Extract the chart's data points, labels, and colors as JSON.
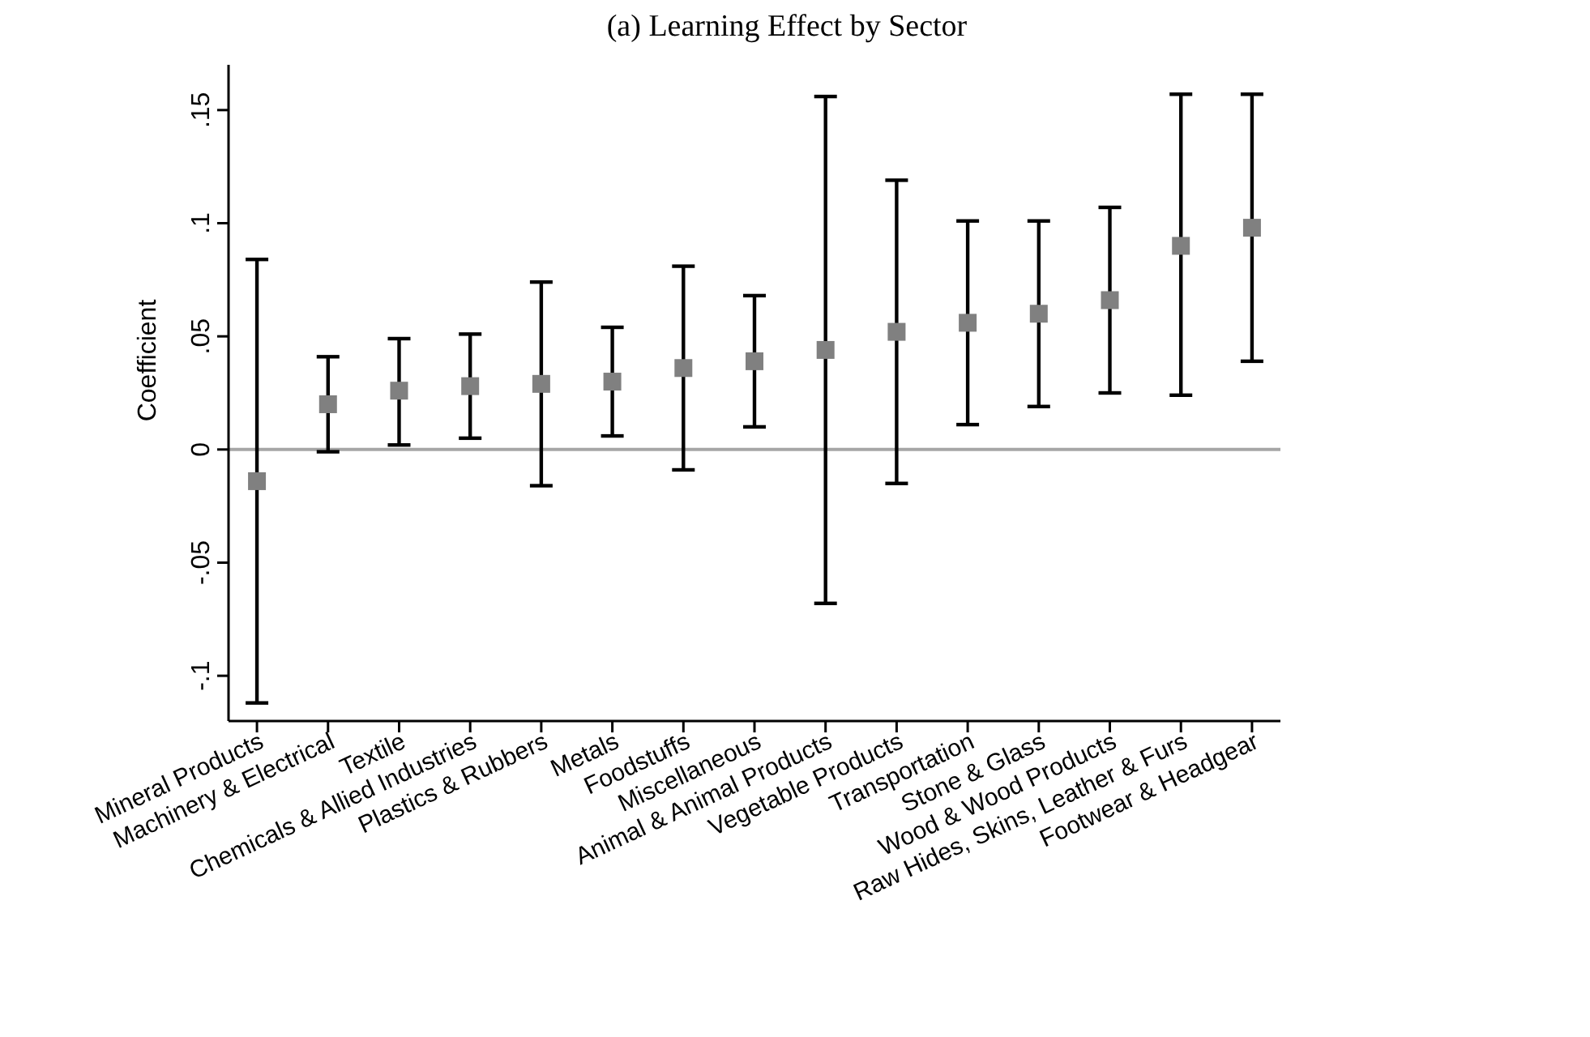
{
  "chart_data": {
    "type": "scatter",
    "title": "(a) Learning Effect by Sector",
    "ylabel": "Coefficient",
    "categories": [
      "Mineral Products",
      "Machinery & Electrical",
      "Textile",
      "Chemicals & Allied Industries",
      "Plastics & Rubbers",
      "Metals",
      "Foodstuffs",
      "Miscellaneous",
      "Animal & Animal Products",
      "Vegetable Products",
      "Transportation",
      "Stone & Glass",
      "Wood & Wood Products",
      "Raw Hides, Skins, Leather & Furs",
      "Footwear & Headgear"
    ],
    "series": [
      {
        "color": "#808080",
        "values": [
          -0.014,
          0.02,
          0.026,
          0.028,
          0.029,
          0.03,
          0.036,
          0.039,
          0.044,
          0.052,
          0.056,
          0.06,
          0.066,
          0.09,
          0.098
        ],
        "errors": [
          [
            -0.112,
            0.084
          ],
          [
            -0.001,
            0.041
          ],
          [
            0.002,
            0.049
          ],
          [
            0.005,
            0.051
          ],
          [
            -0.016,
            0.074
          ],
          [
            0.006,
            0.054
          ],
          [
            -0.009,
            0.081
          ],
          [
            0.01,
            0.068
          ],
          [
            -0.068,
            0.156
          ],
          [
            -0.015,
            0.119
          ],
          [
            0.011,
            0.101
          ],
          [
            0.019,
            0.101
          ],
          [
            0.025,
            0.107
          ],
          [
            0.024,
            0.157
          ],
          [
            0.039,
            0.157
          ]
        ]
      }
    ],
    "marker": "square",
    "ylim": [
      -0.12,
      0.17
    ],
    "yticks": [
      {
        "value": -0.1,
        "label": "-.1"
      },
      {
        "value": -0.05,
        "label": "-.05"
      },
      0,
      {
        "value": 0.05,
        "label": ".05"
      },
      {
        "value": 0.1,
        "label": ".1"
      },
      {
        "value": 0.15,
        "label": ".15"
      }
    ],
    "ref_lines": [
      {
        "axis": "y",
        "value": 0,
        "color": "#a6a6a6"
      }
    ]
  }
}
